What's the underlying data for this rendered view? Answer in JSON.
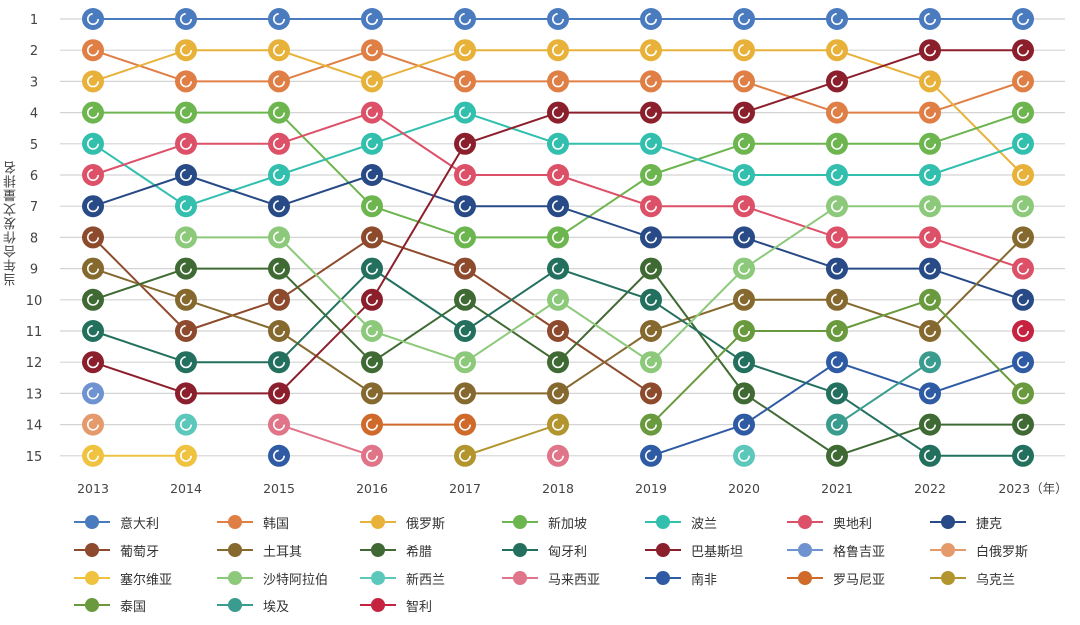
{
  "chart_data": {
    "type": "bump",
    "title": "",
    "xlabel": "",
    "ylabel": "当年合作发文量排名",
    "x": [
      "2013",
      "2014",
      "2015",
      "2016",
      "2017",
      "2018",
      "2019",
      "2020",
      "2021",
      "2022",
      "2023"
    ],
    "x_tick_labels": [
      "2013",
      "2014",
      "2015",
      "2016",
      "2017",
      "2018",
      "2019",
      "2020",
      "2021",
      "2022",
      "2023（年）"
    ],
    "y_ticks": [
      1,
      2,
      3,
      4,
      5,
      6,
      7,
      8,
      9,
      10,
      11,
      12,
      13,
      14,
      15
    ],
    "ylim": [
      1,
      15
    ],
    "y_inverted": true,
    "grid": true,
    "legend_position": "bottom",
    "series": [
      {
        "name": "意大利",
        "color": "#4a7bbf",
        "values": [
          1,
          1,
          1,
          1,
          1,
          1,
          1,
          1,
          1,
          1,
          1
        ]
      },
      {
        "name": "韩国",
        "color": "#e07f45",
        "values": [
          2,
          3,
          3,
          2,
          3,
          3,
          3,
          3,
          4,
          4,
          3
        ]
      },
      {
        "name": "俄罗斯",
        "color": "#e8b23a",
        "values": [
          3,
          2,
          2,
          3,
          2,
          2,
          2,
          2,
          2,
          3,
          6
        ]
      },
      {
        "name": "新加坡",
        "color": "#6db54f",
        "values": [
          4,
          4,
          4,
          7,
          8,
          8,
          6,
          5,
          5,
          5,
          4
        ]
      },
      {
        "name": "波兰",
        "color": "#33bfae",
        "values": [
          5,
          7,
          6,
          5,
          4,
          5,
          5,
          6,
          6,
          6,
          5
        ]
      },
      {
        "name": "奥地利",
        "color": "#dc5068",
        "values": [
          6,
          5,
          5,
          4,
          6,
          6,
          7,
          7,
          8,
          8,
          9
        ]
      },
      {
        "name": "捷克",
        "color": "#284a86",
        "values": [
          7,
          6,
          7,
          6,
          7,
          7,
          8,
          8,
          9,
          9,
          10
        ]
      },
      {
        "name": "葡萄牙",
        "color": "#8e4a2c",
        "values": [
          8,
          11,
          10,
          8,
          9,
          11,
          13,
          null,
          null,
          null,
          null
        ]
      },
      {
        "name": "土耳其",
        "color": "#85692e",
        "values": [
          9,
          10,
          11,
          13,
          13,
          13,
          11,
          10,
          10,
          11,
          8
        ]
      },
      {
        "name": "希腊",
        "color": "#3f6a33",
        "values": [
          10,
          9,
          9,
          12,
          10,
          12,
          9,
          13,
          15,
          14,
          14
        ]
      },
      {
        "name": "匈牙利",
        "color": "#23705f",
        "values": [
          11,
          12,
          12,
          9,
          11,
          9,
          10,
          12,
          13,
          15,
          15
        ]
      },
      {
        "name": "巴基斯坦",
        "color": "#8c1f2c",
        "values": [
          12,
          13,
          13,
          10,
          5,
          4,
          4,
          4,
          3,
          2,
          2
        ]
      },
      {
        "name": "格鲁吉亚",
        "color": "#6e93d0",
        "values": [
          13,
          null,
          null,
          null,
          null,
          null,
          null,
          null,
          null,
          null,
          null
        ]
      },
      {
        "name": "白俄罗斯",
        "color": "#e59a6c",
        "values": [
          14,
          null,
          null,
          null,
          null,
          null,
          null,
          null,
          null,
          null,
          null
        ]
      },
      {
        "name": "塞尔维亚",
        "color": "#efc340",
        "values": [
          15,
          15,
          null,
          null,
          null,
          null,
          null,
          null,
          null,
          null,
          null
        ]
      },
      {
        "name": "沙特阿拉伯",
        "color": "#8cc97a",
        "values": [
          null,
          8,
          8,
          11,
          12,
          10,
          12,
          9,
          7,
          7,
          7
        ]
      },
      {
        "name": "新西兰",
        "color": "#5cc8bb",
        "values": [
          null,
          14,
          null,
          null,
          null,
          null,
          null,
          15,
          null,
          null,
          null
        ]
      },
      {
        "name": "马来西亚",
        "color": "#e07488",
        "values": [
          null,
          null,
          14,
          15,
          null,
          15,
          null,
          null,
          null,
          null,
          null
        ]
      },
      {
        "name": "南非",
        "color": "#2e5ba4",
        "values": [
          null,
          null,
          15,
          null,
          null,
          null,
          15,
          14,
          12,
          13,
          12
        ]
      },
      {
        "name": "罗马尼亚",
        "color": "#cf6a2a",
        "values": [
          null,
          null,
          null,
          14,
          14,
          null,
          null,
          null,
          null,
          null,
          null
        ]
      },
      {
        "name": "乌克兰",
        "color": "#b3952e",
        "values": [
          null,
          null,
          null,
          null,
          15,
          14,
          null,
          null,
          null,
          null,
          null
        ]
      },
      {
        "name": "泰国",
        "color": "#6a9a3e",
        "values": [
          null,
          null,
          null,
          null,
          null,
          null,
          14,
          11,
          11,
          10,
          13
        ]
      },
      {
        "name": "埃及",
        "color": "#3a9b8f",
        "values": [
          null,
          null,
          null,
          null,
          null,
          null,
          null,
          null,
          14,
          12,
          null
        ]
      },
      {
        "name": "智利",
        "color": "#c52340",
        "values": [
          null,
          null,
          null,
          null,
          null,
          null,
          null,
          null,
          null,
          null,
          11
        ]
      }
    ]
  }
}
